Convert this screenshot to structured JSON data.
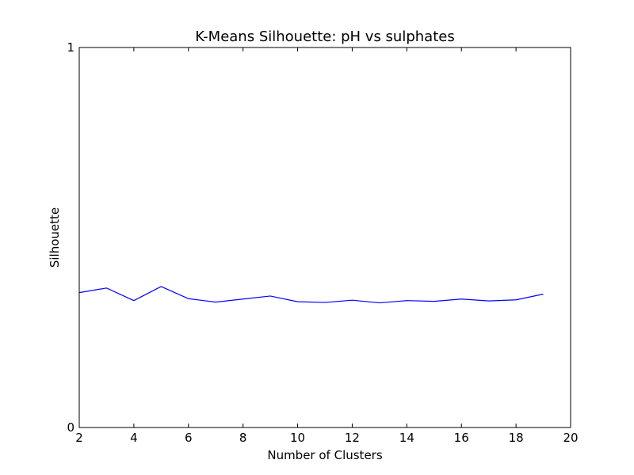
{
  "chart_data": {
    "type": "line",
    "title": "K-Means Silhouette: pH vs sulphates",
    "xlabel": "Number of Clusters",
    "ylabel": "Silhouette",
    "xlim": [
      2,
      20
    ],
    "ylim": [
      0,
      1
    ],
    "xticks": [
      2,
      4,
      6,
      8,
      10,
      12,
      14,
      16,
      18,
      20
    ],
    "yticks": [
      0,
      1
    ],
    "grid": false,
    "series": [
      {
        "color": "#0000ff",
        "x": [
          2,
          3,
          4,
          5,
          6,
          7,
          8,
          9,
          10,
          11,
          12,
          13,
          14,
          15,
          16,
          17,
          18,
          19
        ],
        "y": [
          0.355,
          0.367,
          0.334,
          0.371,
          0.339,
          0.33,
          0.338,
          0.346,
          0.331,
          0.329,
          0.335,
          0.328,
          0.334,
          0.332,
          0.338,
          0.333,
          0.336,
          0.351
        ]
      }
    ]
  }
}
